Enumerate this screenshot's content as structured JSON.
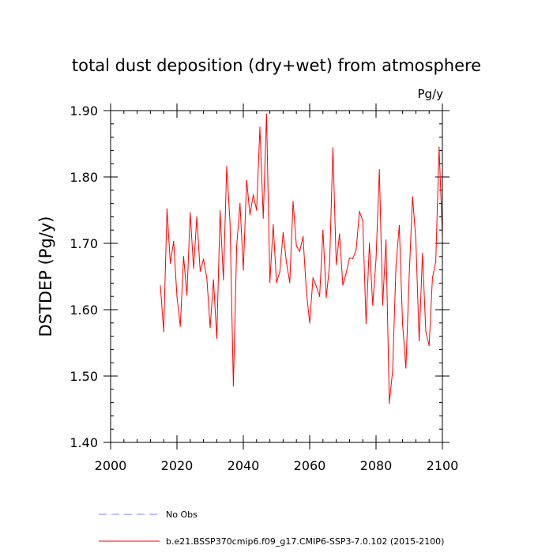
{
  "chart_data": {
    "type": "line",
    "title": "total dust deposition (dry+wet) from atmosphere",
    "units": "Pg/y",
    "ylabel": "DSTDEP  (Pg/y)",
    "xlabel": "",
    "xlim": [
      2000,
      2100
    ],
    "ylim": [
      1.4,
      1.9
    ],
    "xticks": [
      2000,
      2020,
      2040,
      2060,
      2080,
      2100
    ],
    "xtick_labels": [
      "2000",
      "2020",
      "2040",
      "2060",
      "2080",
      "2100"
    ],
    "yticks": [
      1.4,
      1.5,
      1.6,
      1.7,
      1.8,
      1.9
    ],
    "ytick_labels": [
      "1.40",
      "1.50",
      "1.60",
      "1.70",
      "1.80",
      "1.90"
    ],
    "grid": false,
    "legend_position": "bottom",
    "series": [
      {
        "name": "b.e21.BSSP370cmip6.f09_g17.CMIP6-SSP3-7.0.102 (2015-2100)",
        "color": "#ff0000",
        "dash": "solid",
        "x": [
          2015,
          2016,
          2017,
          2018,
          2019,
          2020,
          2021,
          2022,
          2023,
          2024,
          2025,
          2026,
          2027,
          2028,
          2029,
          2030,
          2031,
          2032,
          2033,
          2034,
          2035,
          2036,
          2037,
          2038,
          2039,
          2040,
          2041,
          2042,
          2043,
          2044,
          2045,
          2046,
          2047,
          2048,
          2049,
          2050,
          2051,
          2052,
          2053,
          2054,
          2055,
          2056,
          2057,
          2058,
          2059,
          2060,
          2061,
          2062,
          2063,
          2064,
          2065,
          2066,
          2067,
          2068,
          2069,
          2070,
          2071,
          2072,
          2073,
          2074,
          2075,
          2076,
          2077,
          2078,
          2079,
          2080,
          2081,
          2082,
          2083,
          2084,
          2085,
          2086,
          2087,
          2088,
          2089,
          2090,
          2091,
          2092,
          2093,
          2094,
          2095,
          2096,
          2097,
          2098,
          2099,
          2100
        ],
        "values": [
          1.636,
          1.567,
          1.752,
          1.67,
          1.703,
          1.62,
          1.575,
          1.68,
          1.622,
          1.746,
          1.662,
          1.74,
          1.658,
          1.676,
          1.648,
          1.573,
          1.645,
          1.557,
          1.749,
          1.645,
          1.816,
          1.73,
          1.485,
          1.696,
          1.76,
          1.66,
          1.795,
          1.743,
          1.773,
          1.75,
          1.875,
          1.738,
          1.895,
          1.641,
          1.728,
          1.641,
          1.657,
          1.716,
          1.671,
          1.641,
          1.763,
          1.696,
          1.688,
          1.71,
          1.628,
          1.58,
          1.648,
          1.635,
          1.62,
          1.72,
          1.618,
          1.668,
          1.844,
          1.668,
          1.714,
          1.637,
          1.655,
          1.678,
          1.677,
          1.69,
          1.748,
          1.734,
          1.579,
          1.7,
          1.607,
          1.676,
          1.811,
          1.607,
          1.705,
          1.459,
          1.508,
          1.665,
          1.727,
          1.578,
          1.512,
          1.652,
          1.77,
          1.705,
          1.553,
          1.685,
          1.567,
          1.546,
          1.648,
          1.672,
          1.845,
          1.71
        ]
      },
      {
        "name": "No Obs",
        "color": "#8080ff",
        "dash": "dashed",
        "x": [],
        "values": []
      }
    ]
  }
}
